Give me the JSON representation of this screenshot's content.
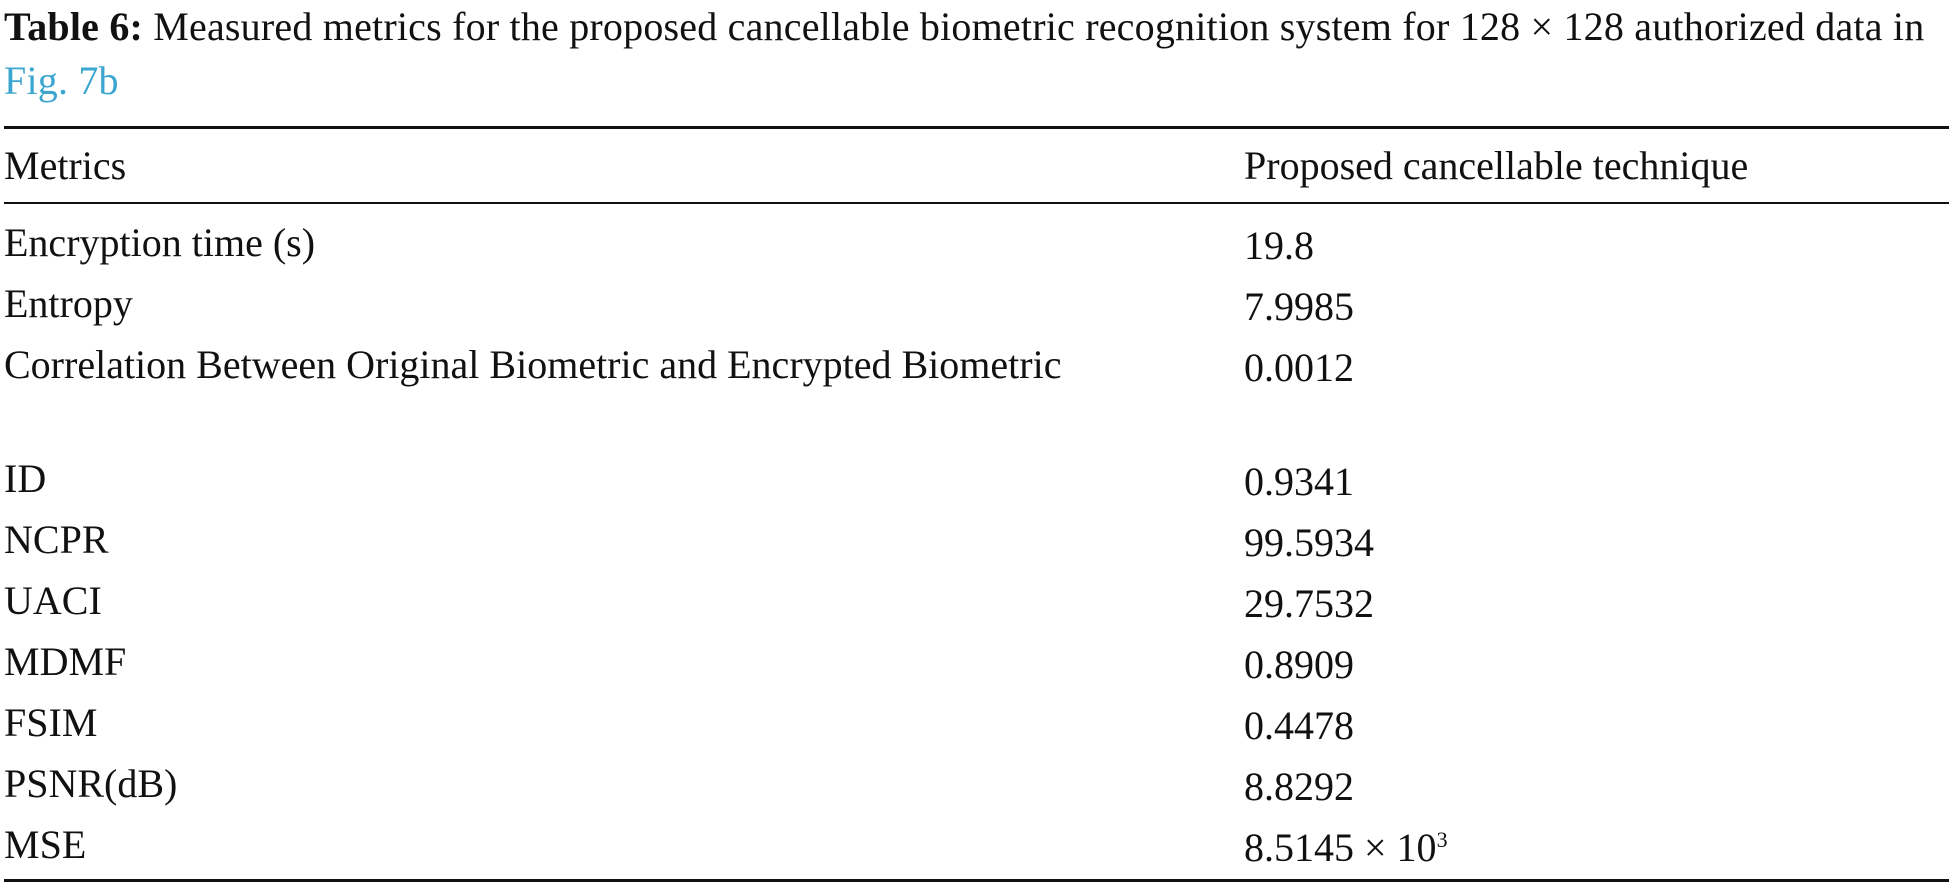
{
  "caption": {
    "label": "Table 6:",
    "text": " Measured metrics for the proposed cancellable biometric recognition system for 128 × 128 authorized data in ",
    "link": "Fig. 7b"
  },
  "table": {
    "headers": [
      "Metrics",
      "Proposed cancellable technique"
    ],
    "rows": [
      {
        "metric": "Encryption time (s)",
        "value": "19.8"
      },
      {
        "metric": "Entropy",
        "value": "7.9985"
      },
      {
        "metric": "Correlation Between Original Biometric and Encrypted Biometric",
        "value": "0.0012"
      },
      {
        "metric": "ID",
        "value": "0.9341"
      },
      {
        "metric": "NCPR",
        "value": "99.5934"
      },
      {
        "metric": "UACI",
        "value": "29.7532"
      },
      {
        "metric": "MDMF",
        "value": "0.8909"
      },
      {
        "metric": "FSIM",
        "value": "0.4478"
      },
      {
        "metric": "PSNR(dB)",
        "value": "8.8292"
      },
      {
        "metric": "MSE",
        "value": "8.5145 × 10",
        "value_exponent": "3"
      }
    ]
  }
}
